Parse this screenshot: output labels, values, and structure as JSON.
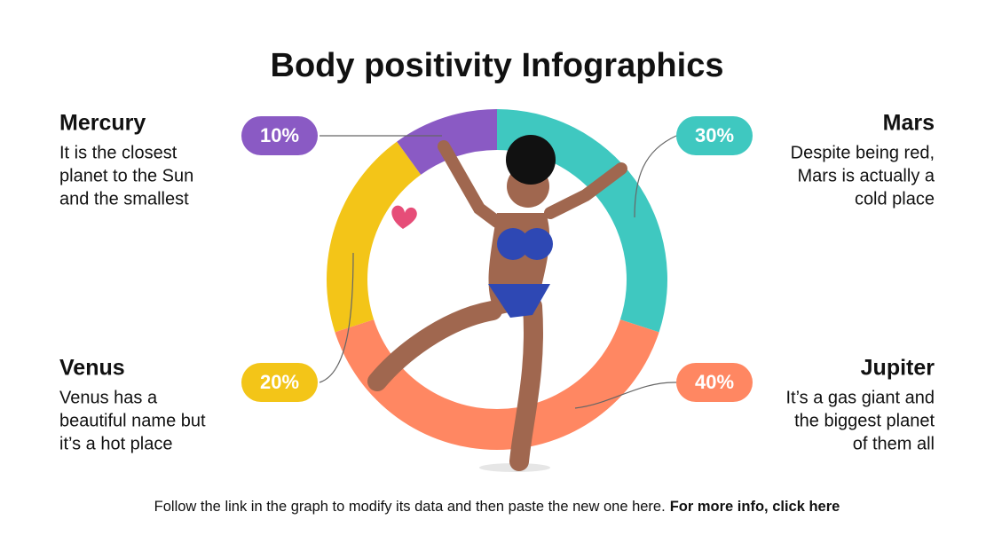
{
  "chart_data": {
    "type": "donut",
    "title": "Body positivity Infographics",
    "categories": [
      "Mars",
      "Jupiter",
      "Venus",
      "Mercury"
    ],
    "values": [
      30,
      40,
      20,
      10
    ],
    "value_labels": [
      "30%",
      "40%",
      "20%",
      "10%"
    ],
    "colors": [
      "#3fc8c0",
      "#ff8762",
      "#f3c518",
      "#8a5ac4"
    ],
    "descriptions": [
      [
        "Despite being red,",
        "Mars is actually a",
        "cold place"
      ],
      [
        "It’s a gas giant and",
        "the biggest planet",
        "of them all"
      ],
      [
        "Venus has a",
        "beautiful name but",
        "it’s a hot place"
      ],
      [
        "It is the closest",
        "planet to the Sun",
        "and the smallest"
      ]
    ],
    "note": "Follow the link in the graph to modify its data and then paste the new one here.",
    "link": "For more info, click here"
  }
}
